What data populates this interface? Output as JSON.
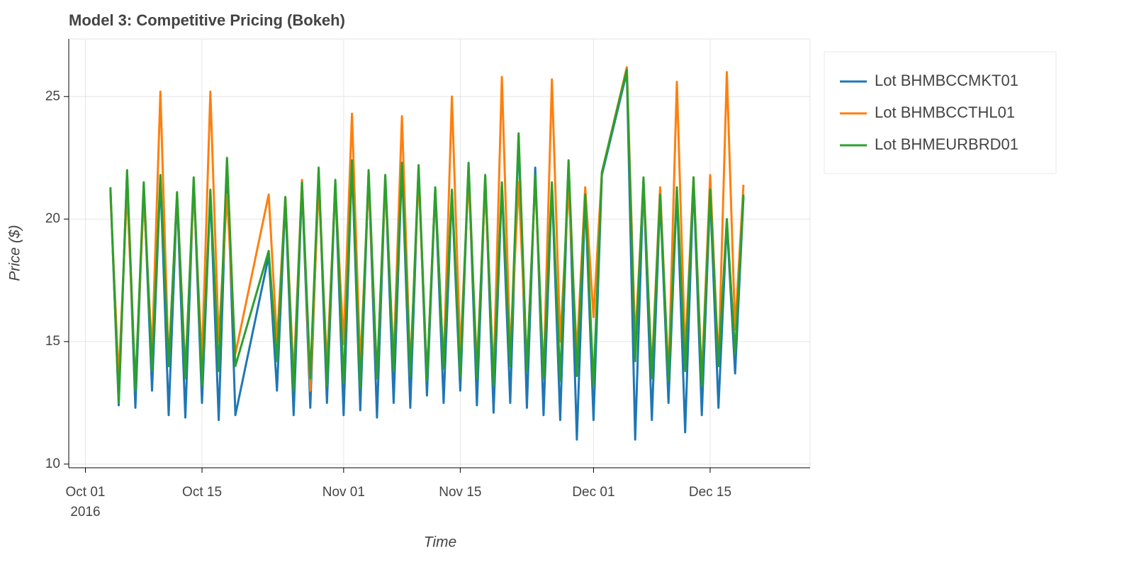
{
  "chart_data": {
    "type": "line",
    "title": "Model 3: Competitive Pricing (Bokeh)",
    "x_label": "Time",
    "y_label": "Price ($)",
    "x": [
      "2016-10-04",
      "2016-10-05",
      "2016-10-06",
      "2016-10-07",
      "2016-10-08",
      "2016-10-09",
      "2016-10-10",
      "2016-10-11",
      "2016-10-12",
      "2016-10-13",
      "2016-10-14",
      "2016-10-15",
      "2016-10-16",
      "2016-10-17",
      "2016-10-18",
      "2016-10-19",
      "2016-10-23",
      "2016-10-24",
      "2016-10-25",
      "2016-10-26",
      "2016-10-27",
      "2016-10-28",
      "2016-10-29",
      "2016-10-30",
      "2016-10-31",
      "2016-11-01",
      "2016-11-02",
      "2016-11-03",
      "2016-11-04",
      "2016-11-05",
      "2016-11-06",
      "2016-11-07",
      "2016-11-08",
      "2016-11-09",
      "2016-11-10",
      "2016-11-11",
      "2016-11-12",
      "2016-11-13",
      "2016-11-14",
      "2016-11-15",
      "2016-11-16",
      "2016-11-17",
      "2016-11-18",
      "2016-11-19",
      "2016-11-20",
      "2016-11-21",
      "2016-11-22",
      "2016-11-23",
      "2016-11-24",
      "2016-11-25",
      "2016-11-26",
      "2016-11-27",
      "2016-11-28",
      "2016-11-29",
      "2016-11-30",
      "2016-12-01",
      "2016-12-02",
      "2016-12-05",
      "2016-12-06",
      "2016-12-07",
      "2016-12-08",
      "2016-12-09",
      "2016-12-10",
      "2016-12-11",
      "2016-12-12",
      "2016-12-13",
      "2016-12-14",
      "2016-12-15",
      "2016-12-16",
      "2016-12-17",
      "2016-12-18",
      "2016-12-19"
    ],
    "series": [
      {
        "name": "Lot BHMBCCMKT01",
        "color": "#1f77b4",
        "values": [
          21.2,
          12.4,
          21.9,
          12.3,
          21.4,
          13.0,
          21.7,
          12.0,
          21.0,
          11.9,
          21.6,
          12.5,
          21.1,
          11.8,
          22.4,
          12.0,
          18.5,
          13.0,
          20.8,
          12.0,
          21.4,
          12.3,
          22.0,
          12.5,
          21.5,
          12.0,
          22.3,
          12.2,
          21.9,
          11.9,
          21.7,
          12.5,
          22.2,
          12.3,
          22.1,
          12.8,
          21.2,
          12.5,
          21.1,
          13.0,
          22.2,
          12.4,
          21.7,
          12.1,
          21.4,
          12.5,
          23.4,
          12.3,
          22.1,
          12.0,
          21.4,
          11.8,
          22.3,
          11.0,
          20.9,
          11.8,
          21.8,
          26.0,
          11.0,
          21.6,
          11.8,
          20.9,
          12.5,
          21.2,
          11.3,
          21.6,
          12.0,
          21.1,
          12.3,
          19.9,
          13.7,
          20.9
        ]
      },
      {
        "name": "Lot BHMBCCTHL01",
        "color": "#ff7f0e",
        "values": [
          21.0,
          13.5,
          21.2,
          13.2,
          20.9,
          14.5,
          25.2,
          14.0,
          21.0,
          13.8,
          21.2,
          14.2,
          25.2,
          15.0,
          21.0,
          14.5,
          21.0,
          15.0,
          20.9,
          13.5,
          21.6,
          13.0,
          21.4,
          14.0,
          21.3,
          14.9,
          24.3,
          14.0,
          21.6,
          13.5,
          21.5,
          14.2,
          24.2,
          13.8,
          21.8,
          13.5,
          21.2,
          14.0,
          25.0,
          14.5,
          21.7,
          14.0,
          21.3,
          13.5,
          25.8,
          14.5,
          21.5,
          14.0,
          21.6,
          13.5,
          25.7,
          15.0,
          21.3,
          14.5,
          21.3,
          16.0,
          21.9,
          26.2,
          15.0,
          21.4,
          13.8,
          21.3,
          13.5,
          25.6,
          14.5,
          21.7,
          13.5,
          21.8,
          14.0,
          26.0,
          15.5,
          21.4
        ]
      },
      {
        "name": "Lot BHMEURBRD01",
        "color": "#2ca02c",
        "values": [
          21.3,
          12.5,
          22.0,
          13.0,
          21.5,
          13.8,
          21.8,
          14.0,
          21.1,
          13.5,
          21.7,
          13.2,
          21.2,
          13.8,
          22.5,
          14.0,
          18.7,
          14.2,
          20.9,
          13.0,
          21.5,
          13.5,
          22.1,
          13.2,
          21.6,
          13.3,
          22.4,
          13.1,
          22.0,
          13.5,
          21.8,
          13.8,
          22.3,
          13.6,
          22.2,
          13.4,
          21.3,
          13.9,
          21.2,
          13.6,
          22.3,
          13.5,
          21.8,
          13.2,
          21.5,
          14.0,
          23.5,
          13.8,
          21.8,
          13.5,
          21.5,
          13.4,
          22.4,
          13.6,
          21.0,
          13.2,
          21.9,
          26.1,
          14.2,
          21.7,
          13.5,
          21.0,
          13.4,
          21.3,
          13.8,
          21.7,
          13.2,
          21.2,
          14.0,
          20.0,
          14.5,
          21.0
        ]
      }
    ],
    "xlim": [
      "2016-09-29",
      "2016-12-27"
    ],
    "xticks": [
      {
        "value": "2016-10-01",
        "label": "Oct 01"
      },
      {
        "value": "2016-10-15",
        "label": "Oct 15"
      },
      {
        "value": "2016-11-01",
        "label": "Nov 01"
      },
      {
        "value": "2016-11-15",
        "label": "Nov 15"
      },
      {
        "value": "2016-12-01",
        "label": "Dec 01"
      },
      {
        "value": "2016-12-15",
        "label": "Dec 15"
      }
    ],
    "xtick_year_label": "2016",
    "ylim": [
      9.85,
      27.35
    ],
    "yticks": [
      10,
      15,
      20,
      25
    ],
    "grid": true,
    "legend": "outside-right"
  }
}
